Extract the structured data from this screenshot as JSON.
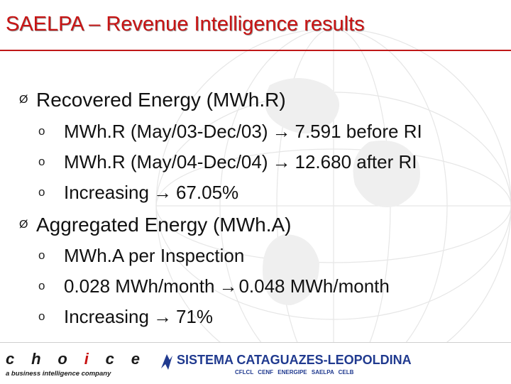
{
  "title": "SAELPA – Revenue Intelligence results",
  "sections": [
    {
      "heading": "Recovered Energy (MWh.R)",
      "items": [
        {
          "left": "MWh.R (May/03-Dec/03)",
          "right": "7.591 before RI"
        },
        {
          "left": "MWh.R (May/04-Dec/04)",
          "right": "12.680 after RI"
        },
        {
          "left": "Increasing",
          "right": "67.05%"
        }
      ]
    },
    {
      "heading": "Aggregated Energy (MWh.A)",
      "items": [
        {
          "left": "MWh.A per Inspection",
          "right": ""
        },
        {
          "left": "0.028 MWh/month",
          "right": "0.048 MWh/month"
        },
        {
          "left": "Increasing",
          "right": "71%"
        }
      ]
    }
  ],
  "glyphs": {
    "section_bullet": "Ø",
    "item_bullet": "o",
    "arrow": "→"
  },
  "footer": {
    "choice_letters": [
      "c",
      "h",
      "o",
      "i",
      "c",
      "e"
    ],
    "choice_tagline": "a business intelligence company",
    "sistema_title": "SISTEMA CATAGUAZES-LEOPOLDINA",
    "sistema_companies": "CFLCL CENF ENERGIPE SAELPA CELB"
  },
  "colors": {
    "title": "#c81414",
    "rule": "#c01818",
    "body_text": "#111111",
    "sistema_blue": "#203a8f"
  }
}
